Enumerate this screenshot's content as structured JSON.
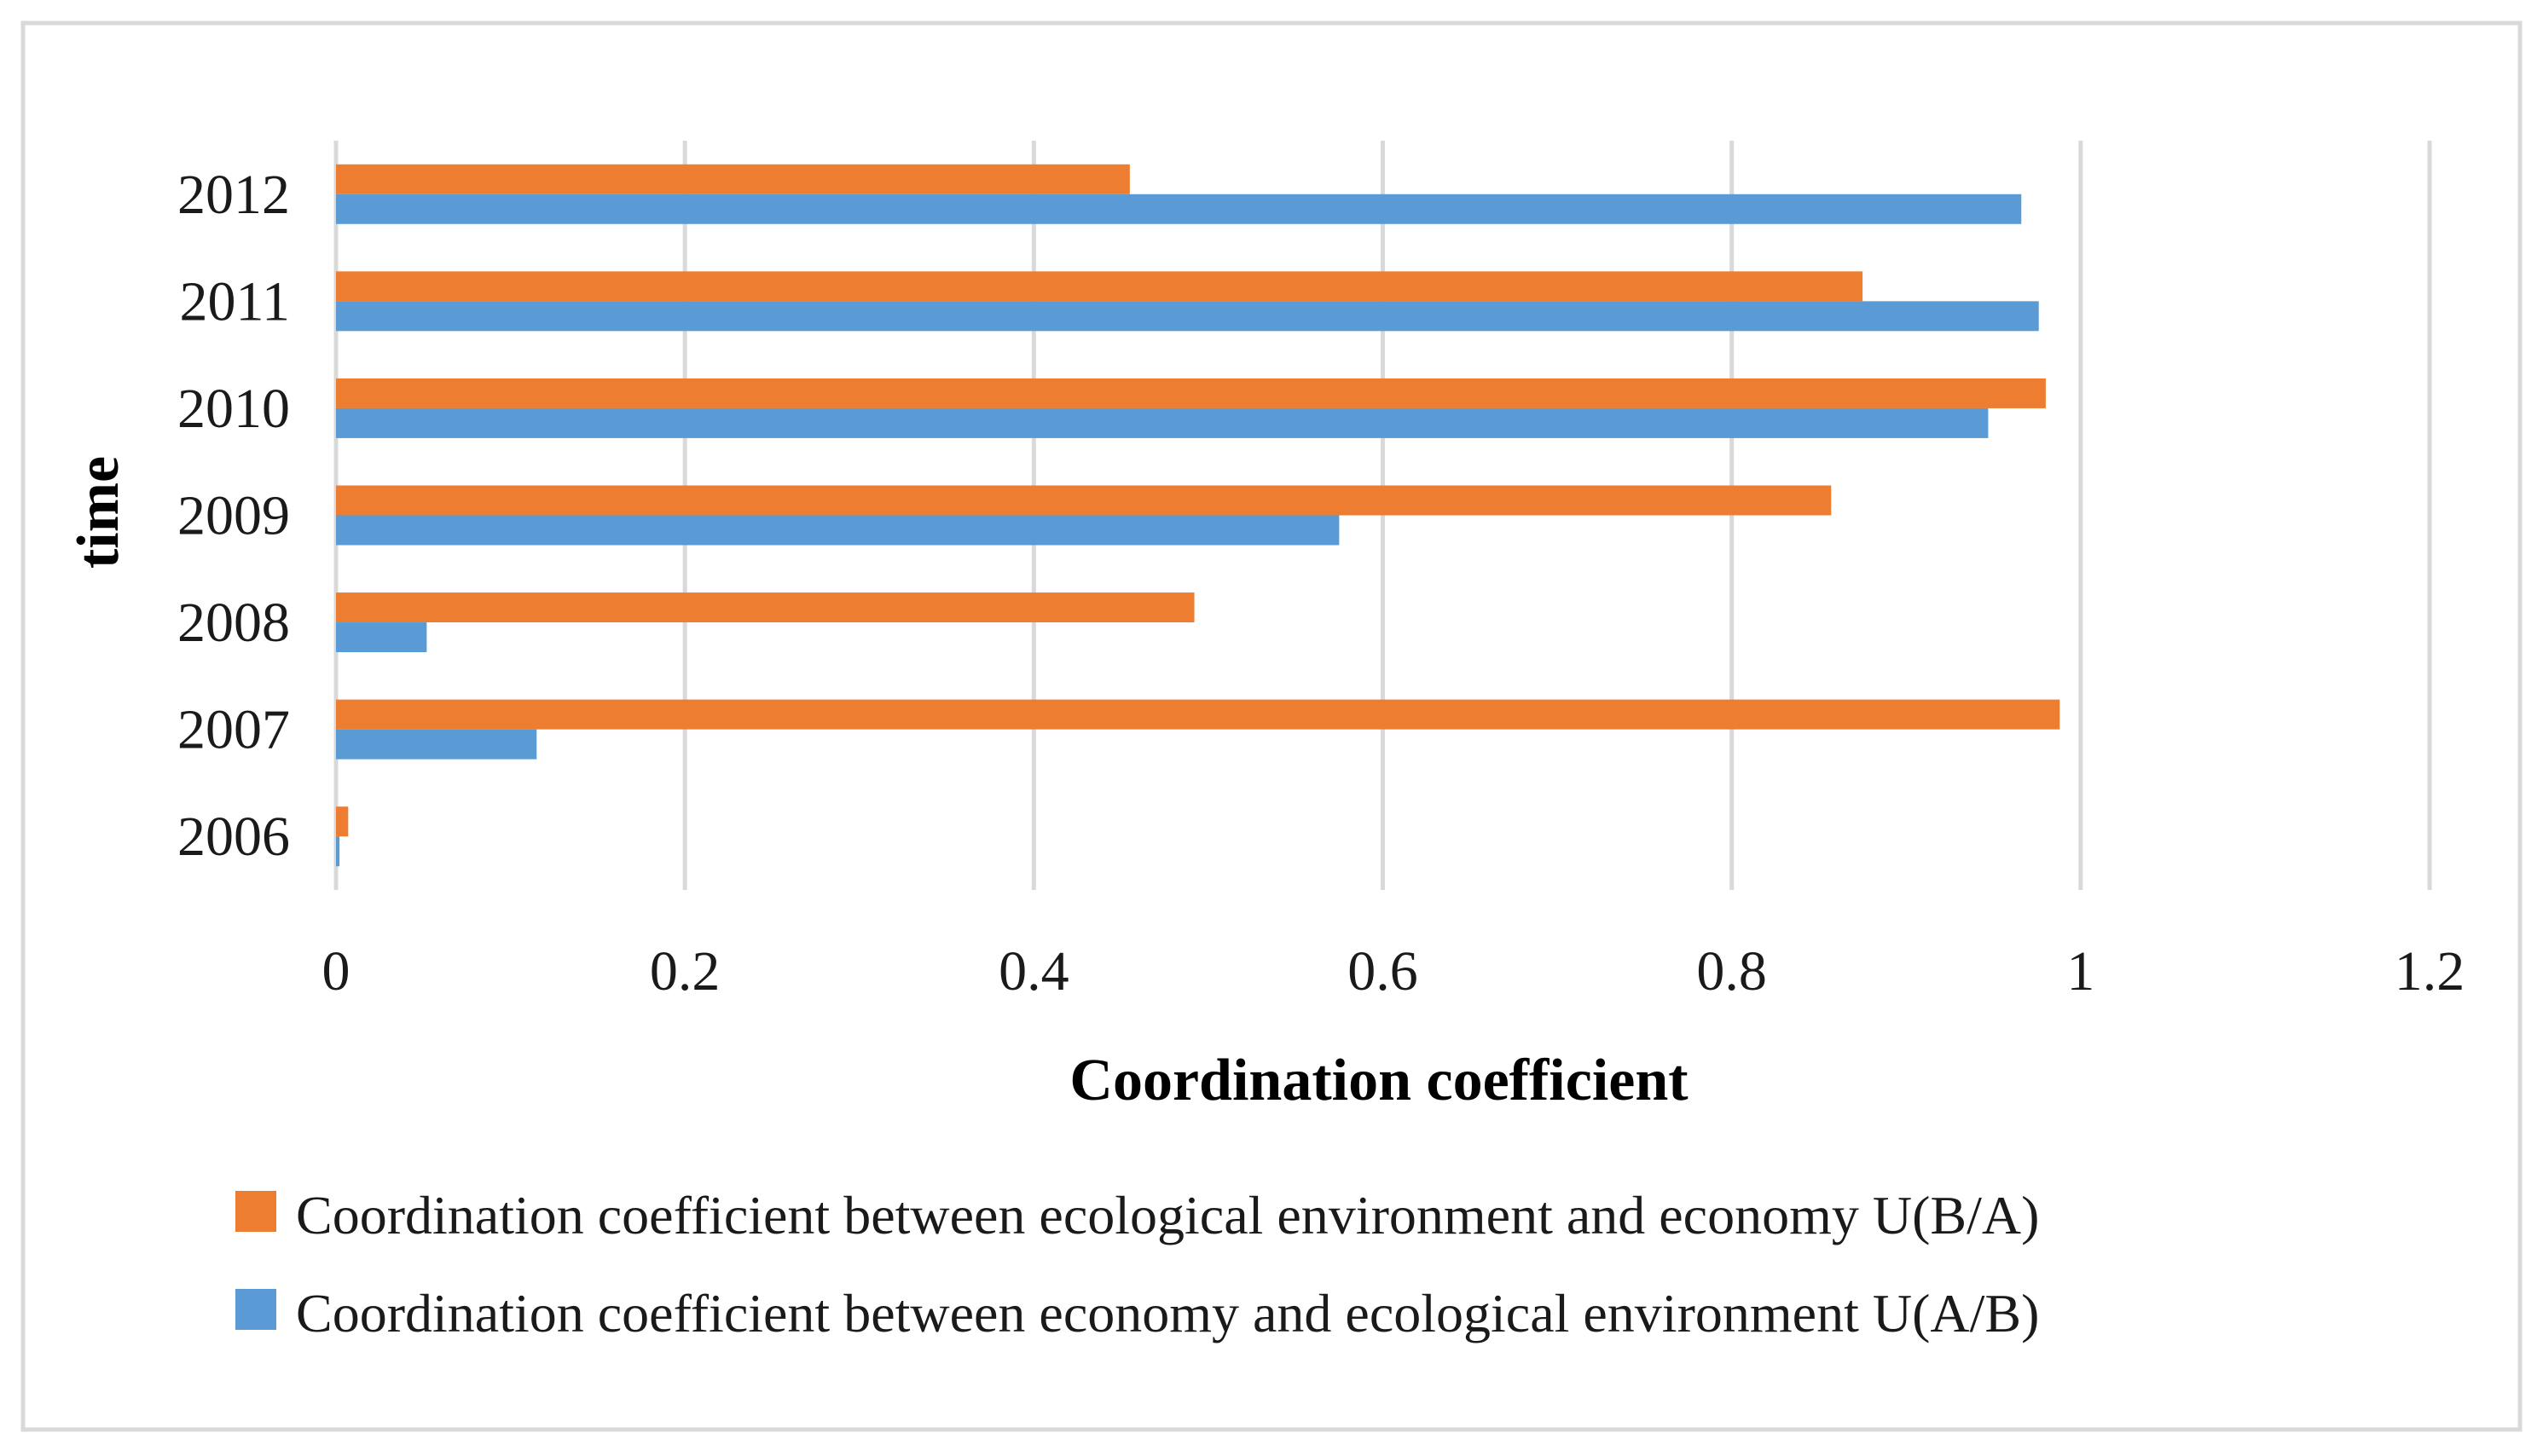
{
  "chart_data": {
    "type": "bar",
    "orientation": "horizontal",
    "title": "",
    "xlabel": "Coordination coefficient",
    "ylabel": "time",
    "xlim": [
      0,
      1.2
    ],
    "x_ticks": [
      "0",
      "0.2",
      "0.4",
      "0.6",
      "0.8",
      "1",
      "1.2"
    ],
    "x_tick_values": [
      0,
      0.2,
      0.4,
      0.6,
      0.8,
      1.0,
      1.2
    ],
    "categories": [
      "2006",
      "2007",
      "2008",
      "2009",
      "2010",
      "2011",
      "2012"
    ],
    "grid": "vertical",
    "legend_position": "bottom",
    "series": [
      {
        "name": "Coordination coefficient between ecological environment and economy U(B/A)",
        "color": "#ED7D31",
        "values": [
          0.007,
          0.988,
          0.492,
          0.857,
          0.98,
          0.875,
          0.455
        ]
      },
      {
        "name": "Coordination coefficient between economy and ecological environment U(A/B)",
        "color": "#5B9BD5",
        "values": [
          0.002,
          0.115,
          0.052,
          0.575,
          0.947,
          0.976,
          0.966
        ]
      }
    ]
  }
}
